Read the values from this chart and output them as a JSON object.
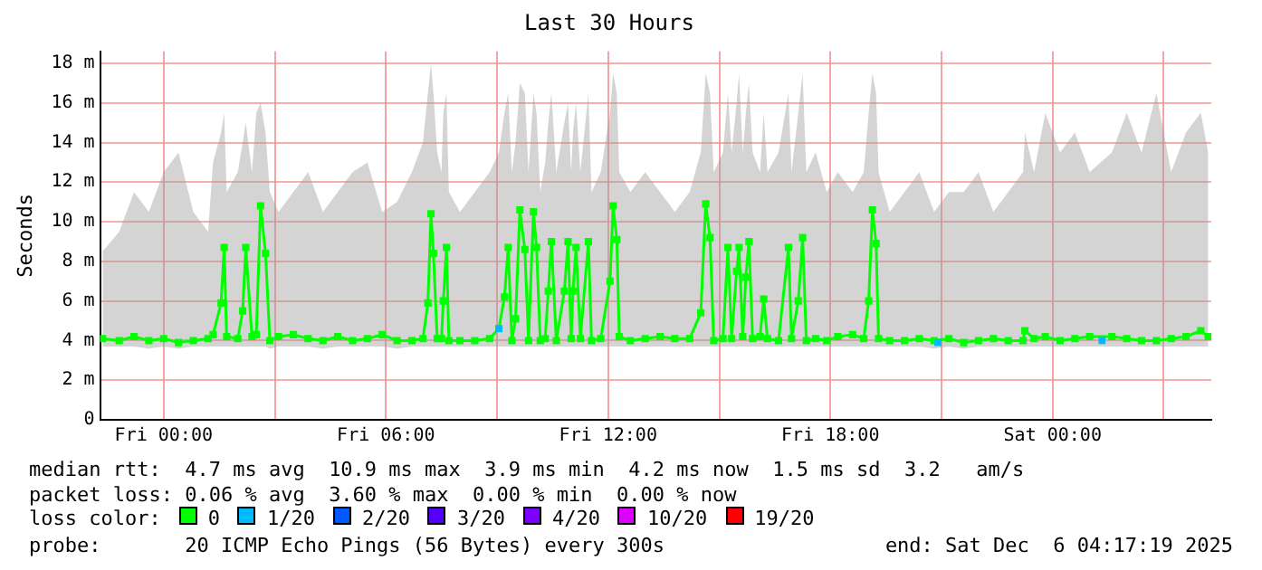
{
  "chart_data": {
    "type": "line",
    "title": "Last 30 Hours",
    "ylabel": "Seconds",
    "legend_title": "loss color:",
    "legend": "bottom",
    "marker": "square",
    "grid": true,
    "xlim": [
      "2025-12-04T22:17",
      "2025-12-06T04:17"
    ],
    "xticks": [
      {
        "value": "2025-12-05T00:00",
        "label": "Fri 00:00"
      },
      {
        "value": "2025-12-05T03:00",
        "label": null
      },
      {
        "value": "2025-12-05T06:00",
        "label": "Fri 06:00"
      },
      {
        "value": "2025-12-05T09:00",
        "label": null
      },
      {
        "value": "2025-12-05T12:00",
        "label": "Fri 12:00"
      },
      {
        "value": "2025-12-05T15:00",
        "label": null
      },
      {
        "value": "2025-12-05T18:00",
        "label": "Fri 18:00"
      },
      {
        "value": "2025-12-05T21:00",
        "label": null
      },
      {
        "value": "2025-12-06T00:00",
        "label": "Sat 00:00"
      },
      {
        "value": "2025-12-06T03:00",
        "label": null
      }
    ],
    "ylim": [
      0,
      18.6
    ],
    "yticks": [
      0,
      {
        "value": 2,
        "label": "2 m"
      },
      {
        "value": 4,
        "label": "4 m"
      },
      {
        "value": 6,
        "label": "6 m"
      },
      {
        "value": 8,
        "label": "8 m"
      },
      {
        "value": 10,
        "label": "10 m"
      },
      {
        "value": 12,
        "label": "12 m"
      },
      {
        "value": 14,
        "label": "14 m"
      },
      {
        "value": 16,
        "label": "16 m"
      },
      {
        "value": 18,
        "label": "18 m"
      }
    ],
    "series": [
      {
        "name": "0",
        "color": "#00ff00",
        "x": [
          "2025-12-04T22:21",
          "2025-12-04T22:48",
          "2025-12-04T23:12",
          "2025-12-04T23:36",
          "2025-12-05T00:00",
          "2025-12-05T00:24",
          "2025-12-05T00:48",
          "2025-12-05T01:12",
          "2025-12-05T01:20",
          "2025-12-05T01:33",
          "2025-12-05T01:38",
          "2025-12-05T01:42",
          "2025-12-05T02:00",
          "2025-12-05T02:08",
          "2025-12-05T02:13",
          "2025-12-05T02:23",
          "2025-12-05T02:30",
          "2025-12-05T02:37",
          "2025-12-05T02:45",
          "2025-12-05T02:52",
          "2025-12-05T03:06",
          "2025-12-05T03:30",
          "2025-12-05T03:54",
          "2025-12-05T04:18",
          "2025-12-05T04:42",
          "2025-12-05T05:06",
          "2025-12-05T05:30",
          "2025-12-05T05:54",
          "2025-12-05T06:18",
          "2025-12-05T06:42",
          "2025-12-05T07:00",
          "2025-12-05T07:08",
          "2025-12-05T07:13",
          "2025-12-05T07:17",
          "2025-12-05T07:23",
          "2025-12-05T07:30",
          "2025-12-05T07:33",
          "2025-12-05T07:38",
          "2025-12-05T07:42",
          "2025-12-05T08:00",
          "2025-12-05T08:24",
          "2025-12-05T08:48",
          "2025-12-05T09:03",
          "2025-12-05T09:12",
          "2025-12-05T09:18",
          "2025-12-05T09:24",
          "2025-12-05T09:30",
          "2025-12-05T09:37",
          "2025-12-05T09:45",
          "2025-12-05T09:51",
          "2025-12-05T09:59",
          "2025-12-05T10:04",
          "2025-12-05T10:10",
          "2025-12-05T10:18",
          "2025-12-05T10:23",
          "2025-12-05T10:28",
          "2025-12-05T10:36",
          "2025-12-05T10:49",
          "2025-12-05T10:55",
          "2025-12-05T11:00",
          "2025-12-05T11:03",
          "2025-12-05T11:08",
          "2025-12-05T11:15",
          "2025-12-05T11:28",
          "2025-12-05T11:33",
          "2025-12-05T11:48",
          "2025-12-05T12:03",
          "2025-12-05T12:08",
          "2025-12-05T12:14",
          "2025-12-05T12:18",
          "2025-12-05T12:36",
          "2025-12-05T13:00",
          "2025-12-05T13:24",
          "2025-12-05T13:48",
          "2025-12-05T14:12",
          "2025-12-05T14:30",
          "2025-12-05T14:38",
          "2025-12-05T14:45",
          "2025-12-05T14:51",
          "2025-12-05T15:06",
          "2025-12-05T15:14",
          "2025-12-05T15:20",
          "2025-12-05T15:28",
          "2025-12-05T15:32",
          "2025-12-05T15:38",
          "2025-12-05T15:43",
          "2025-12-05T15:48",
          "2025-12-05T15:54",
          "2025-12-05T16:06",
          "2025-12-05T16:12",
          "2025-12-05T16:18",
          "2025-12-05T16:36",
          "2025-12-05T16:52",
          "2025-12-05T16:57",
          "2025-12-05T17:08",
          "2025-12-05T17:15",
          "2025-12-05T17:21",
          "2025-12-05T17:36",
          "2025-12-05T17:54",
          "2025-12-05T18:12",
          "2025-12-05T18:36",
          "2025-12-05T18:54",
          "2025-12-05T19:02",
          "2025-12-05T19:08",
          "2025-12-05T19:14",
          "2025-12-05T19:18",
          "2025-12-05T19:36",
          "2025-12-05T20:00",
          "2025-12-05T20:24",
          "2025-12-05T20:48",
          "2025-12-05T21:12",
          "2025-12-05T21:36",
          "2025-12-05T22:00",
          "2025-12-05T22:24",
          "2025-12-05T22:48",
          "2025-12-05T23:12",
          "2025-12-05T23:15",
          "2025-12-05T23:30",
          "2025-12-05T23:48",
          "2025-12-06T00:12",
          "2025-12-06T00:36",
          "2025-12-06T01:00",
          "2025-12-06T01:36",
          "2025-12-06T02:00",
          "2025-12-06T02:24",
          "2025-12-06T02:48",
          "2025-12-06T03:12",
          "2025-12-06T03:36",
          "2025-12-06T04:00",
          "2025-12-06T04:12"
        ],
        "values": [
          4.1,
          4.0,
          4.2,
          4.0,
          4.1,
          3.9,
          4.0,
          4.1,
          4.3,
          5.9,
          8.7,
          4.2,
          4.1,
          5.5,
          8.7,
          4.2,
          4.3,
          10.8,
          8.4,
          4.0,
          4.2,
          4.3,
          4.1,
          4.0,
          4.2,
          4.0,
          4.1,
          4.3,
          4.0,
          4.0,
          4.1,
          5.9,
          10.4,
          8.4,
          4.1,
          4.1,
          6.0,
          8.7,
          4.0,
          4.0,
          4.0,
          4.1,
          4.6,
          6.2,
          8.7,
          4.0,
          5.1,
          10.6,
          8.6,
          4.0,
          10.5,
          8.7,
          4.0,
          4.1,
          6.5,
          9.0,
          4.0,
          6.5,
          9.0,
          4.1,
          6.5,
          8.7,
          4.1,
          9.0,
          4.0,
          4.1,
          7.0,
          10.8,
          9.1,
          4.2,
          4.0,
          4.1,
          4.2,
          4.1,
          4.1,
          5.4,
          10.9,
          9.2,
          4.0,
          4.1,
          8.7,
          4.1,
          7.5,
          8.7,
          4.2,
          7.2,
          9.0,
          4.1,
          4.2,
          6.1,
          4.1,
          4.0,
          8.7,
          4.1,
          6.0,
          9.2,
          4.0,
          4.1,
          4.0,
          4.2,
          4.3,
          4.1,
          6.0,
          10.6,
          8.9,
          4.1,
          4.0,
          4.0,
          4.1,
          4.0,
          4.1,
          3.9,
          4.0,
          4.1,
          4.0,
          4.0,
          4.5,
          4.1,
          4.2,
          4.0,
          4.1,
          4.2,
          4.2,
          4.1,
          4.0,
          4.0,
          4.1,
          4.2,
          4.5,
          4.2
        ],
        "lower": [
          3.7,
          3.7,
          3.7,
          3.6,
          3.7,
          3.6,
          3.7,
          3.7,
          3.7,
          3.7,
          3.7,
          3.7,
          3.7,
          3.7,
          3.7,
          3.7,
          3.7,
          3.7,
          3.7,
          3.6,
          3.7,
          3.7,
          3.7,
          3.6,
          3.7,
          3.7,
          3.7,
          3.7,
          3.6,
          3.7,
          3.7,
          3.7,
          3.7,
          3.7,
          3.7,
          3.7,
          3.7,
          3.7,
          3.7,
          3.7,
          3.7,
          3.7,
          3.7,
          3.7,
          3.7,
          3.7,
          3.7,
          3.7,
          3.7,
          3.7,
          3.7,
          3.7,
          3.7,
          3.7,
          3.7,
          3.7,
          3.7,
          3.7,
          3.7,
          3.7,
          3.7,
          3.7,
          3.7,
          3.7,
          3.7,
          3.7,
          3.7,
          3.7,
          3.7,
          3.7,
          3.7,
          3.7,
          3.7,
          3.7,
          3.7,
          3.7,
          3.7,
          3.7,
          3.7,
          3.7,
          3.7,
          3.7,
          3.7,
          3.7,
          3.7,
          3.7,
          3.7,
          3.7,
          3.7,
          3.7,
          3.7,
          3.7,
          3.7,
          3.7,
          3.7,
          3.7,
          3.7,
          3.7,
          3.7,
          3.7,
          3.7,
          3.7,
          3.7,
          3.7,
          3.7,
          3.7,
          3.7,
          3.7,
          3.7,
          3.6,
          3.7,
          3.6,
          3.7,
          3.7,
          3.7,
          3.7,
          3.7,
          3.7,
          3.7,
          3.7,
          3.7,
          3.7,
          3.7,
          3.7,
          3.7,
          3.7,
          3.7,
          3.7,
          3.7,
          3.7
        ],
        "upper": [
          8.5,
          9.5,
          11.5,
          10.5,
          12.5,
          13.5,
          10.5,
          9.5,
          13.0,
          14.5,
          15.5,
          11.5,
          12.5,
          14.0,
          15.0,
          12.5,
          15.5,
          16.0,
          14.5,
          11.5,
          10.5,
          11.5,
          12.5,
          10.5,
          11.5,
          12.5,
          13.0,
          10.5,
          11.0,
          12.5,
          14.0,
          16.5,
          18.0,
          16.5,
          13.5,
          12.5,
          15.5,
          16.5,
          11.5,
          10.5,
          11.5,
          12.5,
          13.5,
          15.5,
          16.5,
          12.5,
          14.0,
          17.0,
          16.5,
          12.5,
          16.5,
          15.5,
          11.5,
          13.0,
          15.0,
          16.5,
          12.5,
          15.0,
          16.0,
          12.5,
          14.5,
          16.0,
          12.5,
          16.5,
          11.5,
          12.5,
          15.5,
          17.5,
          16.5,
          12.5,
          11.5,
          12.5,
          11.5,
          10.5,
          11.5,
          13.5,
          17.5,
          16.5,
          12.5,
          13.5,
          16.5,
          13.5,
          16.0,
          17.5,
          13.5,
          15.5,
          17.0,
          13.5,
          12.5,
          15.5,
          12.5,
          13.5,
          16.5,
          12.5,
          15.5,
          17.5,
          12.5,
          13.5,
          11.5,
          12.5,
          11.5,
          12.5,
          15.5,
          17.5,
          16.5,
          12.5,
          10.5,
          11.5,
          12.5,
          10.5,
          11.5,
          11.5,
          12.5,
          10.5,
          11.5,
          12.5,
          14.5,
          12.5,
          15.5,
          13.5,
          14.5,
          12.5,
          13.5,
          15.5,
          13.5,
          16.5,
          12.5,
          14.5,
          15.5,
          13.5
        ]
      },
      {
        "name": "1/20",
        "color": "#00b8ff",
        "type": "scatter",
        "x": [
          "2025-12-05T09:03",
          "2025-12-05T20:54",
          "2025-12-06T01:20"
        ],
        "values": [
          4.6,
          3.9,
          4.0
        ]
      },
      {
        "name": "2/20",
        "color": "#0059ff",
        "type": "scatter"
      },
      {
        "name": "3/20",
        "color": "#5500ff",
        "type": "scatter"
      },
      {
        "name": "4/20",
        "color": "#7e00ff",
        "type": "scatter"
      },
      {
        "name": "10/20",
        "color": "#dd00ff",
        "type": "scatter"
      },
      {
        "name": "19/20",
        "color": "#ff0000",
        "type": "scatter"
      }
    ],
    "annotations": [
      "median rtt:  4.7 ms avg  10.9 ms max  3.9 ms min  4.2 ms now  1.5 ms sd  3.2   am/s",
      "packet loss: 0.06 % avg  3.60 % max  0.00 % min  0.00 % now",
      "probe:       20 ICMP Echo Pings (56 Bytes) every 300s",
      "end: Sat Dec  6 04:17:19 2025"
    ]
  }
}
